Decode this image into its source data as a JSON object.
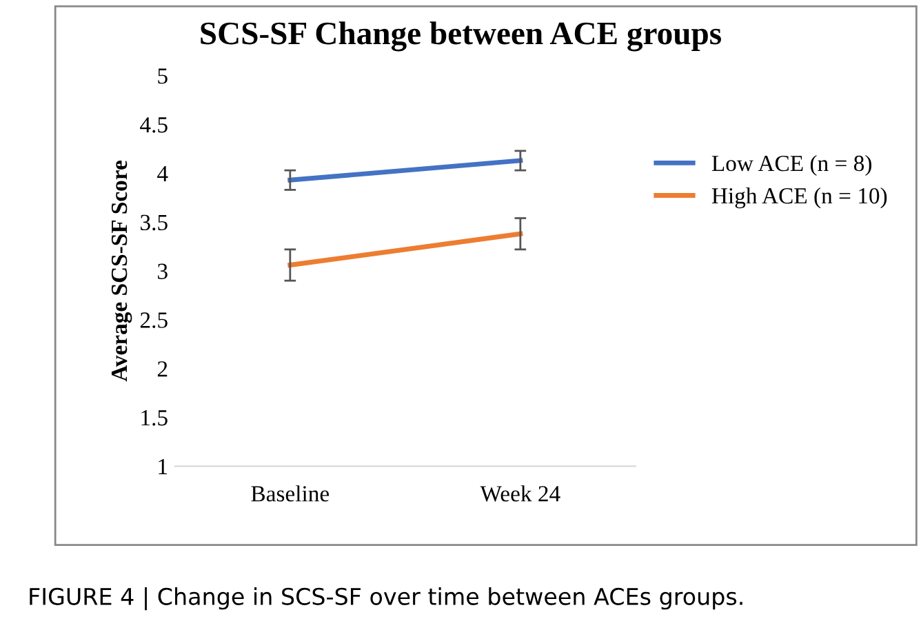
{
  "chart_data": {
    "type": "line",
    "title": "SCS-SF Change between ACE groups",
    "ylabel": "Average SCS-SF Score",
    "categories": [
      "Baseline",
      "Week 24"
    ],
    "series": [
      {
        "name": "Low ACE (n = 8)",
        "color": "#4472c4",
        "values": [
          3.93,
          4.13
        ],
        "errors": [
          0.1,
          0.1
        ]
      },
      {
        "name": "High ACE (n = 10)",
        "color": "#ed7d31",
        "values": [
          3.06,
          3.38
        ],
        "errors": [
          0.16,
          0.16
        ]
      }
    ],
    "ylim": [
      1,
      5
    ],
    "yticks": [
      1,
      1.5,
      2,
      2.5,
      3,
      3.5,
      4,
      4.5,
      5
    ],
    "grid": false,
    "legend": "right",
    "marker": "none",
    "line_style": "solid",
    "annotations": [
      "FIGURE 4 | Change in SCS-SF over time between ACEs groups."
    ]
  }
}
